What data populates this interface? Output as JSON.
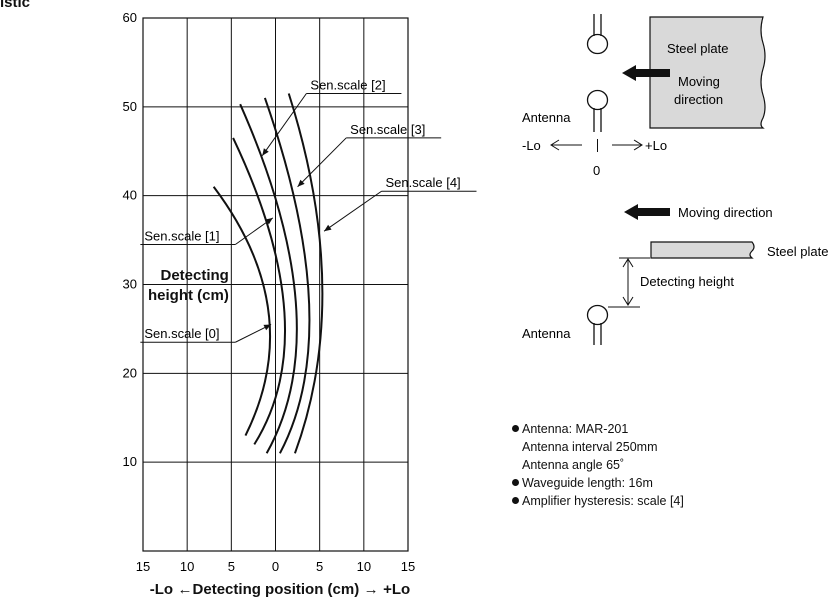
{
  "corner_title": "istic",
  "chart_data": {
    "type": "line",
    "xlabel_parts": [
      "-Lo",
      "←",
      "Detecting position (cm)",
      "→",
      "+Lo"
    ],
    "ylabel_lines": [
      "Detecting",
      "height (cm)"
    ],
    "x_tick_labels": [
      "15",
      "10",
      "5",
      "0",
      "5",
      "10",
      "15"
    ],
    "x_tick_values": [
      -15,
      -10,
      -5,
      0,
      5,
      10,
      15
    ],
    "y_tick_labels": [
      "10",
      "20",
      "30",
      "40",
      "50",
      "60"
    ],
    "y_tick_values": [
      10,
      20,
      30,
      40,
      50,
      60
    ],
    "xlim": [
      -15,
      15
    ],
    "ylim": [
      0,
      60
    ],
    "grid": true,
    "series": [
      {
        "name": "Sen.scale [0]",
        "points": [
          [
            -7,
            41
          ],
          [
            -0.8,
            27
          ],
          [
            -3.4,
            13
          ]
        ]
      },
      {
        "name": "Sen.scale [1]",
        "points": [
          [
            -4.8,
            46.5
          ],
          [
            1,
            27
          ],
          [
            -2.4,
            12
          ]
        ]
      },
      {
        "name": "Sen.scale [2]",
        "points": [
          [
            -4,
            50.3
          ],
          [
            2.3,
            28
          ],
          [
            -1,
            11
          ]
        ]
      },
      {
        "name": "Sen.scale [3]",
        "points": [
          [
            -1.2,
            51
          ],
          [
            3.8,
            28
          ],
          [
            0.5,
            11
          ]
        ]
      },
      {
        "name": "Sen.scale [4]",
        "points": [
          [
            1.5,
            51.5
          ],
          [
            5.3,
            30
          ],
          [
            2.2,
            11
          ]
        ]
      }
    ],
    "annotations": [
      {
        "label": "Sen.scale [0]",
        "series": 0,
        "point": [
          -0.5,
          25.5
        ],
        "side": "left",
        "anchor_x": -15.3,
        "anchor_y": 23.5
      },
      {
        "label": "Sen.scale [1]",
        "series": 1,
        "point": [
          -0.3,
          37.5
        ],
        "side": "left",
        "anchor_x": -15.3,
        "anchor_y": 34.5
      },
      {
        "label": "Sen.scale [2]",
        "series": 2,
        "point": [
          -1.5,
          44.5
        ],
        "side": "right",
        "anchor_x": 3.5,
        "anchor_y": 51.5
      },
      {
        "label": "Sen.scale [3]",
        "series": 3,
        "point": [
          2.5,
          41
        ],
        "side": "right",
        "anchor_x": 8,
        "anchor_y": 46.5
      },
      {
        "label": "Sen.scale [4]",
        "series": 4,
        "point": [
          5.5,
          36
        ],
        "side": "right",
        "anchor_x": 12,
        "anchor_y": 40.5
      }
    ]
  },
  "diagram": {
    "top_plate_label": "Steel plate",
    "top_moving_label": [
      "Moving",
      "direction"
    ],
    "top_antenna_label": "Antenna",
    "minus_lo": "-Lo",
    "plus_lo": "+Lo",
    "zero_label": "0",
    "bottom_moving_label": "Moving direction",
    "bottom_plate_label": "Steel plate",
    "detecting_height_label": "Detecting height",
    "bottom_antenna_label": "Antenna"
  },
  "notes": [
    {
      "text": "Antenna: MAR-201",
      "bullet": true
    },
    {
      "text": "Antenna interval   250mm",
      "bullet": false
    },
    {
      "text": "Antenna angle   65˚",
      "bullet": false
    },
    {
      "text": "Waveguide length: 16m",
      "bullet": true
    },
    {
      "text": "Amplifier hysteresis: scale [4]",
      "bullet": true
    }
  ]
}
